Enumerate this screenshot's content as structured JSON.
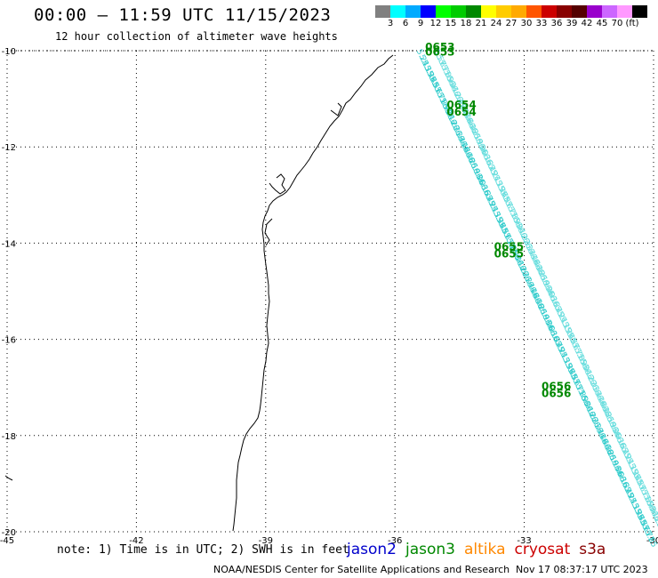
{
  "header": {
    "title": "00:00 – 11:59 UTC 11/15/2023",
    "subtitle": "12 hour collection of altimeter wave heights"
  },
  "legend": {
    "colors": [
      "#808080",
      "#00ffff",
      "#00aaff",
      "#0000ff",
      "#00ff00",
      "#00cc00",
      "#008800",
      "#ffff00",
      "#ffcc00",
      "#ffaa00",
      "#ff5500",
      "#cc0000",
      "#880000",
      "#550000",
      "#9900cc",
      "#cc66ff",
      "#ff99ff",
      "#000000"
    ],
    "labels": [
      "3",
      "6",
      "9",
      "12",
      "15",
      "18",
      "21",
      "24",
      "27",
      "30",
      "33",
      "36",
      "39",
      "42",
      "45",
      "70",
      "(ft)"
    ]
  },
  "axes": {
    "x_ticks": [
      "-45",
      "-42",
      "-39",
      "-36",
      "-33",
      "-30"
    ],
    "y_ticks": [
      "-10",
      "-12",
      "-14",
      "-16",
      "-18",
      "-20"
    ],
    "lon_range": [
      -45,
      -30
    ],
    "lat_range": [
      -20,
      -10
    ]
  },
  "tracks": {
    "labels": [
      "0653",
      "0653",
      "0654",
      "0654",
      "0655",
      "0655",
      "0656",
      "0656"
    ],
    "label_lonlat": [
      [
        -35.3,
        -10.0
      ],
      [
        -35.3,
        -10.1
      ],
      [
        -34.8,
        -11.2
      ],
      [
        -34.8,
        -11.35
      ],
      [
        -33.7,
        -14.15
      ],
      [
        -33.7,
        -14.3
      ],
      [
        -32.6,
        -17.05
      ],
      [
        -32.6,
        -17.2
      ]
    ],
    "wave_values": [
      "5.24",
      "5.13",
      "5.19",
      "5.36",
      "5.48",
      "5.57",
      "5.61",
      "5.71",
      "5.85",
      "5.93",
      "6.04",
      "6.12",
      "6.22",
      "6.31",
      "6.33",
      "6.41",
      "6.46",
      "6.44",
      "6.38",
      "6.25",
      "6.19",
      "6.13",
      "6.06",
      "6.03",
      "6.16",
      "6.32",
      "6.49"
    ]
  },
  "footer": {
    "note": "note: 1) Time is in UTC; 2) SWH is in feet",
    "satellites": [
      {
        "name": "jason2",
        "color": "#0000cc"
      },
      {
        "name": "jason3",
        "color": "#008800"
      },
      {
        "name": "altika",
        "color": "#ff8800"
      },
      {
        "name": "cryosat",
        "color": "#cc0000"
      },
      {
        "name": "s3a",
        "color": "#880000"
      }
    ],
    "credit": "NOAA/NESDIS Center for Satellite Applications and Research",
    "timestamp": "Nov 17 08:37:17 UTC 2023"
  }
}
